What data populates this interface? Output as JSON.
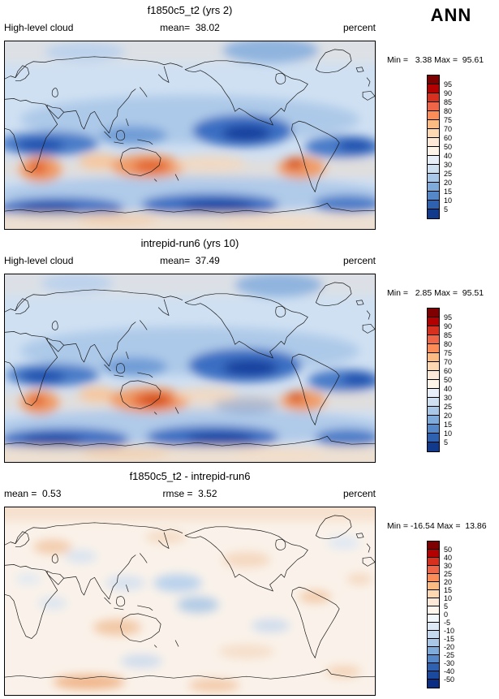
{
  "season": "ANN",
  "chart_data": [
    {
      "type": "heatmap",
      "title": "f1850c5_t2 (yrs 2)",
      "units": "percent",
      "stats": {
        "mean": 38.02,
        "min": 3.38,
        "max": 95.61
      },
      "labels": {
        "left": "High-level cloud",
        "center": "mean=  38.02",
        "right": "percent",
        "minmax": "Min =   3.38 Max =  95.61"
      },
      "colorbar": {
        "ticks": [
          95,
          90,
          85,
          80,
          75,
          70,
          60,
          50,
          40,
          30,
          25,
          20,
          15,
          10,
          5
        ],
        "colors": [
          "#7f0000",
          "#b30000",
          "#d7301f",
          "#ef6548",
          "#fc8d59",
          "#fdbb84",
          "#fdd8b3",
          "#fee8d8",
          "#fff4e8",
          "#e8eff8",
          "#cfe0f0",
          "#a9c8e8",
          "#7fabda",
          "#5588c8",
          "#2e62b0",
          "#123a8c"
        ]
      }
    },
    {
      "type": "heatmap",
      "title": "intrepid-run6 (yrs 10)",
      "units": "percent",
      "stats": {
        "mean": 37.49,
        "min": 2.85,
        "max": 95.51
      },
      "labels": {
        "left": "High-level cloud",
        "center": "mean=  37.49",
        "right": "percent",
        "minmax": "Min =   2.85 Max =  95.51"
      },
      "colorbar": {
        "ticks": [
          95,
          90,
          85,
          80,
          75,
          70,
          60,
          50,
          40,
          30,
          25,
          20,
          15,
          10,
          5
        ],
        "colors": [
          "#7f0000",
          "#b30000",
          "#d7301f",
          "#ef6548",
          "#fc8d59",
          "#fdbb84",
          "#fdd8b3",
          "#fee8d8",
          "#fff4e8",
          "#e8eff8",
          "#cfe0f0",
          "#a9c8e8",
          "#7fabda",
          "#5588c8",
          "#2e62b0",
          "#123a8c"
        ]
      }
    },
    {
      "type": "heatmap",
      "title": "f1850c5_t2 - intrepid-run6",
      "units": "percent",
      "stats": {
        "mean": 0.53,
        "rmse": 3.52,
        "min": -16.54,
        "max": 13.86
      },
      "labels": {
        "left": "mean =  0.53",
        "center": "rmse =  3.52",
        "right": "percent",
        "minmax": "Min = -16.54 Max =  13.86"
      },
      "colorbar": {
        "ticks": [
          50,
          40,
          30,
          25,
          20,
          15,
          10,
          5,
          0,
          -5,
          -10,
          -15,
          -20,
          -25,
          -30,
          -40,
          -50
        ],
        "colors": [
          "#7f0000",
          "#b30000",
          "#d7301f",
          "#ef6548",
          "#fc8d59",
          "#fdbb84",
          "#fdd8b3",
          "#fee8d8",
          "#fff6ee",
          "#f2f7fc",
          "#dce9f5",
          "#c4d9ee",
          "#a9c8e8",
          "#7fabda",
          "#5588c8",
          "#2e62b0",
          "#1a49a0",
          "#0c2d84"
        ]
      }
    }
  ]
}
